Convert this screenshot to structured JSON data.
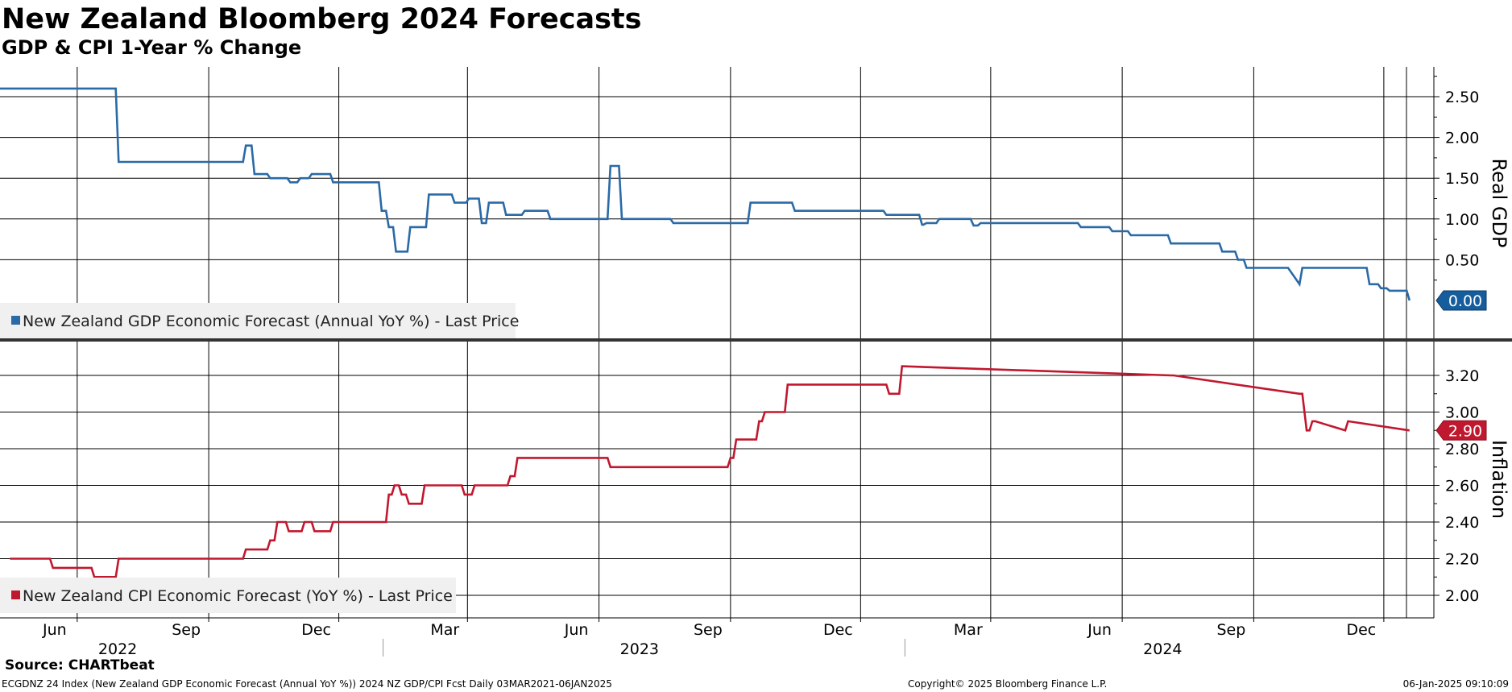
{
  "header": {
    "title": "New Zealand Bloomberg 2024 Forecasts",
    "subtitle": "GDP & CPI 1-Year % Change"
  },
  "footer": {
    "source": "Source: CHARTbeat",
    "description": "ECGDNZ 24 Index (New Zealand GDP Economic Forecast (Annual YoY %)) 2024 NZ GDP/CPI Fcst  Daily 03MAR2021-06JAN2025",
    "copyright": "Copyright© 2025 Bloomberg Finance L.P.",
    "timestamp": "06-Jan-2025 09:10:09"
  },
  "colors": {
    "gdp": "#2a6aa6",
    "cpi": "#c0182f",
    "grid": "#000000",
    "legend_bg": "#f0f0f0"
  },
  "chart_data": [
    {
      "type": "line",
      "panel": "top",
      "ylabel": "Real GDP",
      "ylim": [
        -0.3,
        2.8
      ],
      "yticks": [
        "0.50",
        "1.00",
        "1.50",
        "2.00",
        "2.50"
      ],
      "legend": "New Zealand GDP Economic Forecast (Annual YoY %) - Last Price",
      "legend_position": "bottom-left",
      "last_value_label": "0.00",
      "grid": true,
      "series": [
        {
          "name": "New Zealand GDP Economic Forecast (Annual YoY %) - Last Price",
          "x": [
            "2022-04-08",
            "2022-06-28",
            "2022-06-30",
            "2022-09-25",
            "2022-09-27",
            "2022-09-28",
            "2022-10-01",
            "2022-10-03",
            "2022-10-06",
            "2022-10-12",
            "2022-10-14",
            "2022-10-26",
            "2022-10-28",
            "2022-11-02",
            "2022-11-04",
            "2022-11-10",
            "2022-11-12",
            "2022-11-25",
            "2022-11-27",
            "2022-12-29",
            "2022-12-31",
            "2023-01-03",
            "2023-01-05",
            "2023-01-08",
            "2023-01-10",
            "2023-01-18",
            "2023-01-20",
            "2023-01-31",
            "2023-02-02",
            "2023-02-18",
            "2023-02-20",
            "2023-02-28",
            "2023-03-02",
            "2023-03-09",
            "2023-03-11",
            "2023-03-14",
            "2023-03-16",
            "2023-03-26",
            "2023-03-28",
            "2023-04-08",
            "2023-04-10",
            "2023-04-26",
            "2023-04-28",
            "2023-05-02",
            "2023-05-04",
            "2023-06-07",
            "2023-06-09",
            "2023-06-15",
            "2023-06-17",
            "2023-06-19",
            "2023-06-21",
            "2023-07-21",
            "2023-07-23",
            "2023-08-28",
            "2023-08-30",
            "2023-09-13",
            "2023-09-15",
            "2023-10-14",
            "2023-10-16",
            "2023-11-04",
            "2023-11-06",
            "2023-12-17",
            "2023-12-19",
            "2024-01-11",
            "2024-01-13",
            "2024-01-14",
            "2024-01-16",
            "2024-01-23",
            "2024-01-25",
            "2024-02-16",
            "2024-02-18",
            "2024-02-21",
            "2024-02-23",
            "2024-05-01",
            "2024-05-03",
            "2024-05-23",
            "2024-05-25",
            "2024-06-05",
            "2024-06-07",
            "2024-07-03",
            "2024-07-05",
            "2024-08-08",
            "2024-08-10",
            "2024-08-19",
            "2024-08-21",
            "2024-08-25",
            "2024-08-27",
            "2024-09-23",
            "2024-09-25",
            "2024-10-03",
            "2024-10-05",
            "2024-10-07",
            "2024-11-19",
            "2024-11-21",
            "2024-11-27",
            "2024-11-29",
            "2024-12-03",
            "2024-12-05",
            "2024-12-15",
            "2024-12-17",
            "2024-12-19"
          ],
          "y": [
            2.6,
            2.6,
            1.7,
            1.7,
            1.9,
            1.9,
            1.9,
            1.55,
            1.55,
            1.55,
            1.5,
            1.5,
            1.45,
            1.45,
            1.5,
            1.5,
            1.55,
            1.55,
            1.45,
            1.45,
            1.1,
            1.1,
            0.9,
            0.9,
            0.6,
            0.6,
            0.9,
            0.9,
            1.3,
            1.3,
            1.2,
            1.2,
            1.25,
            1.25,
            0.95,
            0.95,
            1.2,
            1.2,
            1.05,
            1.05,
            1.1,
            1.1,
            1.0,
            1.0,
            1.0,
            1.0,
            1.65,
            1.65,
            1.0,
            1.0,
            1.0,
            1.0,
            0.95,
            0.95,
            0.95,
            0.95,
            1.2,
            1.2,
            1.1,
            1.1,
            1.1,
            1.1,
            1.05,
            1.05,
            0.93,
            0.93,
            0.95,
            0.95,
            1.0,
            1.0,
            0.92,
            0.92,
            0.95,
            0.95,
            0.9,
            0.9,
            0.85,
            0.85,
            0.8,
            0.8,
            0.7,
            0.7,
            0.6,
            0.6,
            0.5,
            0.5,
            0.4,
            0.4,
            0.4,
            0.2,
            0.4,
            0.4,
            0.4,
            0.2,
            0.2,
            0.15,
            0.15,
            0.12,
            0.12,
            0.12,
            0.0
          ]
        }
      ]
    },
    {
      "type": "line",
      "panel": "bottom",
      "ylabel": "Inflation",
      "ylim": [
        1.92,
        3.3
      ],
      "yticks": [
        "2.00",
        "2.20",
        "2.40",
        "2.60",
        "2.80",
        "3.00",
        "3.20"
      ],
      "legend": "New Zealand CPI Economic Forecast (YoY %) - Last Price",
      "legend_position": "bottom-left",
      "last_value_label": "2.90",
      "grid": true,
      "series": [
        {
          "name": "New Zealand CPI Economic Forecast (YoY %) - Last Price",
          "x": [
            "2022-04-15",
            "2022-05-13",
            "2022-05-15",
            "2022-06-11",
            "2022-06-13",
            "2022-06-28",
            "2022-06-30",
            "2022-09-25",
            "2022-09-27",
            "2022-10-12",
            "2022-10-14",
            "2022-10-17",
            "2022-10-19",
            "2022-10-25",
            "2022-10-27",
            "2022-11-05",
            "2022-11-07",
            "2022-11-12",
            "2022-11-14",
            "2022-11-25",
            "2022-11-27",
            "2022-11-30",
            "2022-12-02",
            "2023-01-03",
            "2023-01-05",
            "2023-01-07",
            "2023-01-09",
            "2023-01-12",
            "2023-01-14",
            "2023-01-17",
            "2023-01-19",
            "2023-01-28",
            "2023-01-30",
            "2023-02-25",
            "2023-02-27",
            "2023-03-04",
            "2023-03-06",
            "2023-03-29",
            "2023-03-31",
            "2023-04-03",
            "2023-04-05",
            "2023-06-07",
            "2023-06-09",
            "2023-06-11",
            "2023-06-13",
            "2023-08-30",
            "2023-09-01",
            "2023-09-03",
            "2023-09-05",
            "2023-09-19",
            "2023-09-21",
            "2023-09-23",
            "2023-09-25",
            "2023-10-09",
            "2023-10-11",
            "2023-12-19",
            "2023-12-21",
            "2023-12-23",
            "2023-12-25",
            "2023-12-28",
            "2023-12-30",
            "2024-07-05",
            "2024-07-07",
            "2024-10-03",
            "2024-10-05",
            "2024-10-08",
            "2024-10-10",
            "2024-10-12",
            "2024-10-14",
            "2024-11-04",
            "2024-11-06",
            "2024-12-19"
          ],
          "y": [
            2.2,
            2.2,
            2.15,
            2.15,
            2.1,
            2.1,
            2.2,
            2.2,
            2.25,
            2.25,
            2.3,
            2.3,
            2.4,
            2.4,
            2.35,
            2.35,
            2.4,
            2.4,
            2.35,
            2.35,
            2.4,
            2.4,
            2.4,
            2.4,
            2.55,
            2.55,
            2.6,
            2.6,
            2.55,
            2.55,
            2.5,
            2.5,
            2.6,
            2.6,
            2.55,
            2.55,
            2.6,
            2.6,
            2.65,
            2.65,
            2.75,
            2.75,
            2.7,
            2.7,
            2.7,
            2.7,
            2.75,
            2.75,
            2.85,
            2.85,
            2.95,
            2.95,
            3.0,
            3.0,
            3.15,
            3.15,
            3.1,
            3.1,
            3.1,
            3.1,
            3.25,
            3.2,
            3.2,
            3.1,
            3.1,
            2.9,
            2.9,
            2.95,
            2.95,
            2.9,
            2.95,
            2.9
          ]
        }
      ]
    }
  ],
  "x_axis": {
    "month_ticks": [
      {
        "label": "Jun",
        "date": "2022-06-01"
      },
      {
        "label": "Sep",
        "date": "2022-09-01"
      },
      {
        "label": "Dec",
        "date": "2022-12-01"
      },
      {
        "label": "Mar",
        "date": "2023-03-01"
      },
      {
        "label": "Jun",
        "date": "2023-06-01"
      },
      {
        "label": "Sep",
        "date": "2023-09-01"
      },
      {
        "label": "Dec",
        "date": "2023-12-01"
      },
      {
        "label": "Mar",
        "date": "2024-03-01"
      },
      {
        "label": "Jun",
        "date": "2024-06-01"
      },
      {
        "label": "Sep",
        "date": "2024-09-01"
      },
      {
        "label": "Dec",
        "date": "2024-12-01"
      }
    ],
    "year_labels": [
      {
        "label": "2022",
        "date": "2022-07-01"
      },
      {
        "label": "2023",
        "date": "2023-07-01"
      },
      {
        "label": "2024",
        "date": "2024-07-01"
      }
    ],
    "year_boundaries": [
      "2023-01-01",
      "2024-01-01"
    ]
  }
}
